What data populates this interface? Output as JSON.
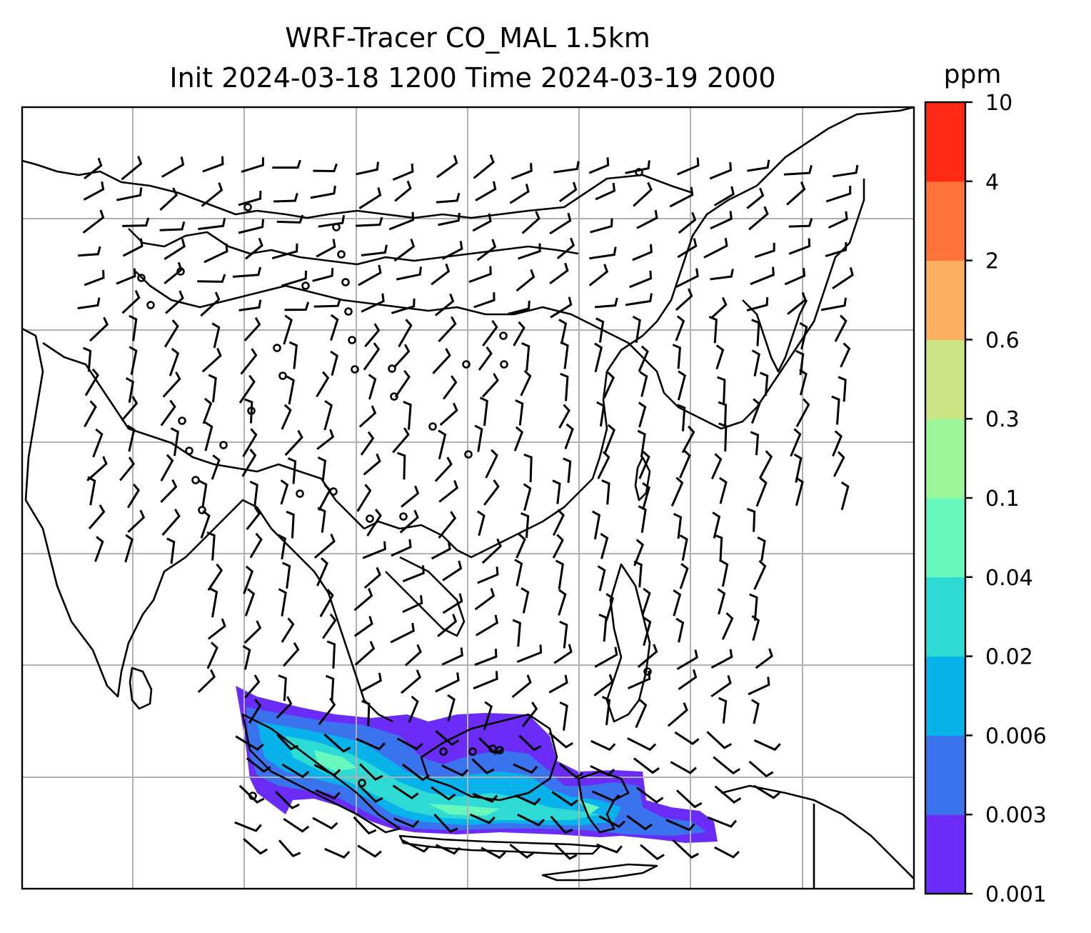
{
  "title": {
    "line1": "WRF-Tracer CO_MAL 1.5km",
    "line2": "Init 2024-03-18 1200 Time 2024-03-19 2000"
  },
  "colorbar": {
    "unit": "ppm",
    "levels": [
      "0.001",
      "0.003",
      "0.006",
      "0.02",
      "0.04",
      "0.1",
      "0.3",
      "0.6",
      "2",
      "4",
      "10"
    ],
    "colors": [
      "#6a2cf6",
      "#3a73ee",
      "#08b2ea",
      "#2edbd4",
      "#67f8bd",
      "#9bf79a",
      "#cee384",
      "#fdaf62",
      "#ff7238",
      "#ff2a15"
    ]
  },
  "map": {
    "gridlines": true,
    "background": "#ffffff",
    "overlay": "wind barbs"
  }
}
